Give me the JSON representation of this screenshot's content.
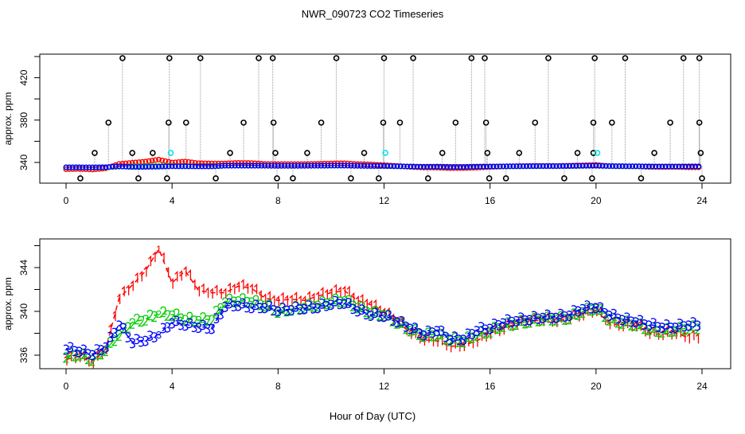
{
  "chart_data": [
    {
      "type": "scatter",
      "title": "NWR_090723  CO2 Timeseries",
      "xlabel": "",
      "ylabel": "approx. ppm",
      "xlim": [
        0,
        24
      ],
      "ylim": [
        330,
        440
      ],
      "x_ticks": [
        0,
        4,
        8,
        12,
        16,
        20,
        24
      ],
      "y_ticks": [
        340,
        360,
        380,
        400,
        420,
        440
      ],
      "y_tick_labels": [
        "340",
        "",
        "380",
        "",
        "420",
        ""
      ],
      "grid": false,
      "reference_points": {
        "color": "#000000",
        "points": [
          [
            2.13,
            438.5
          ],
          [
            3.9,
            438.5
          ],
          [
            5.07,
            438.5
          ],
          [
            7.27,
            438.5
          ],
          [
            7.8,
            438.5
          ],
          [
            10.2,
            438.5
          ],
          [
            12.0,
            438.5
          ],
          [
            13.1,
            438.5
          ],
          [
            15.3,
            438.5
          ],
          [
            15.8,
            438.5
          ],
          [
            18.2,
            438.5
          ],
          [
            19.95,
            438.5
          ],
          [
            21.1,
            438.5
          ],
          [
            23.3,
            438.5
          ],
          [
            23.9,
            438.5
          ],
          [
            1.6,
            377.6
          ],
          [
            3.87,
            377.6
          ],
          [
            4.53,
            377.6
          ],
          [
            6.7,
            377.6
          ],
          [
            7.83,
            377.6
          ],
          [
            9.63,
            377.6
          ],
          [
            11.97,
            377.6
          ],
          [
            12.6,
            377.6
          ],
          [
            14.7,
            377.6
          ],
          [
            15.85,
            377.6
          ],
          [
            17.7,
            377.6
          ],
          [
            19.9,
            377.6
          ],
          [
            20.6,
            377.6
          ],
          [
            22.8,
            377.6
          ],
          [
            23.9,
            377.6
          ],
          [
            1.08,
            349
          ],
          [
            2.5,
            349
          ],
          [
            3.27,
            349
          ],
          [
            6.19,
            349
          ],
          [
            7.9,
            349
          ],
          [
            9.1,
            349
          ],
          [
            11.25,
            349
          ],
          [
            14.2,
            349
          ],
          [
            15.9,
            349
          ],
          [
            17.1,
            349
          ],
          [
            19.3,
            349
          ],
          [
            19.9,
            349
          ],
          [
            22.2,
            349
          ],
          [
            23.95,
            349
          ],
          [
            0.54,
            325
          ],
          [
            2.73,
            325
          ],
          [
            3.81,
            325
          ],
          [
            5.65,
            325
          ],
          [
            7.96,
            325
          ],
          [
            8.56,
            325
          ],
          [
            10.75,
            325
          ],
          [
            11.8,
            325
          ],
          [
            13.66,
            325
          ],
          [
            15.97,
            325
          ],
          [
            16.6,
            325
          ],
          [
            18.8,
            325
          ],
          [
            19.85,
            325
          ],
          [
            21.7,
            325
          ],
          [
            24.0,
            325
          ]
        ]
      },
      "highlight_points": {
        "color": "#00e5ee",
        "points": [
          [
            3.95,
            349
          ],
          [
            12.05,
            349
          ],
          [
            20.05,
            349
          ]
        ]
      }
    },
    {
      "type": "line",
      "title": "",
      "xlabel": "Hour of Day (UTC)",
      "ylabel": "approx. ppm",
      "xlim": [
        0,
        24
      ],
      "ylim": [
        335.3,
        347.2
      ],
      "x_ticks": [
        0,
        4,
        8,
        12,
        16,
        20,
        24
      ],
      "y_ticks": [
        336,
        338,
        340,
        342,
        344,
        346
      ],
      "y_tick_labels": [
        "336",
        "",
        "340",
        "",
        "344",
        ""
      ],
      "grid": false,
      "x": [
        0,
        0.5,
        1,
        1.5,
        2,
        2.5,
        3,
        3.5,
        4,
        4.5,
        5,
        5.5,
        6,
        6.5,
        7,
        7.5,
        8,
        8.5,
        9,
        9.5,
        10,
        10.5,
        11,
        11.5,
        12,
        12.5,
        13,
        13.5,
        14,
        14.5,
        15,
        15.5,
        16,
        16.5,
        17,
        17.5,
        18,
        18.5,
        19,
        19.5,
        20,
        20.5,
        21,
        21.5,
        22,
        22.5,
        23,
        23.5
      ],
      "series": [
        {
          "name": "1",
          "marker": "1",
          "color": "#ff0000",
          "values": [
            335.6,
            335.9,
            335.3,
            336.6,
            341.2,
            342.4,
            343.7,
            345.7,
            342.6,
            343.7,
            341.9,
            341.7,
            341.7,
            342.3,
            342.1,
            341.2,
            341.0,
            341.1,
            341.0,
            341.4,
            341.7,
            341.9,
            341.0,
            340.6,
            339.9,
            339.1,
            338.0,
            337.4,
            337.3,
            336.8,
            336.9,
            337.3,
            338.0,
            338.4,
            338.9,
            339.1,
            339.2,
            339.1,
            339.4,
            339.7,
            340.1,
            338.9,
            338.7,
            338.7,
            338.0,
            337.9,
            338.0,
            337.6
          ]
        },
        {
          "name": "2",
          "marker": "2",
          "color": "#00cc00",
          "values": [
            335.9,
            336.1,
            335.6,
            336.5,
            337.9,
            339.0,
            339.3,
            339.8,
            339.7,
            339.3,
            339.2,
            339.3,
            340.9,
            341.0,
            340.9,
            340.6,
            340.0,
            340.2,
            340.4,
            340.6,
            340.9,
            341.0,
            340.4,
            339.9,
            339.7,
            339.0,
            338.3,
            337.8,
            337.9,
            337.4,
            337.3,
            337.9,
            338.2,
            338.7,
            338.9,
            339.1,
            339.3,
            339.3,
            339.4,
            340.0,
            340.3,
            339.3,
            339.0,
            338.8,
            338.4,
            338.2,
            338.3,
            338.5
          ]
        },
        {
          "name": "3",
          "marker": "3",
          "color": "#0000ff",
          "values": [
            336.6,
            336.4,
            336.1,
            336.8,
            338.8,
            337.2,
            337.4,
            337.9,
            339.0,
            338.8,
            338.6,
            338.5,
            340.5,
            340.6,
            340.4,
            340.4,
            340.1,
            340.2,
            340.3,
            340.4,
            340.7,
            340.8,
            340.1,
            339.7,
            339.6,
            339.1,
            338.5,
            337.9,
            338.3,
            337.5,
            337.5,
            338.3,
            338.5,
            339.0,
            339.2,
            339.3,
            339.5,
            339.5,
            339.7,
            340.3,
            340.4,
            339.7,
            339.3,
            339.1,
            338.8,
            338.6,
            338.6,
            338.8
          ]
        }
      ]
    }
  ]
}
